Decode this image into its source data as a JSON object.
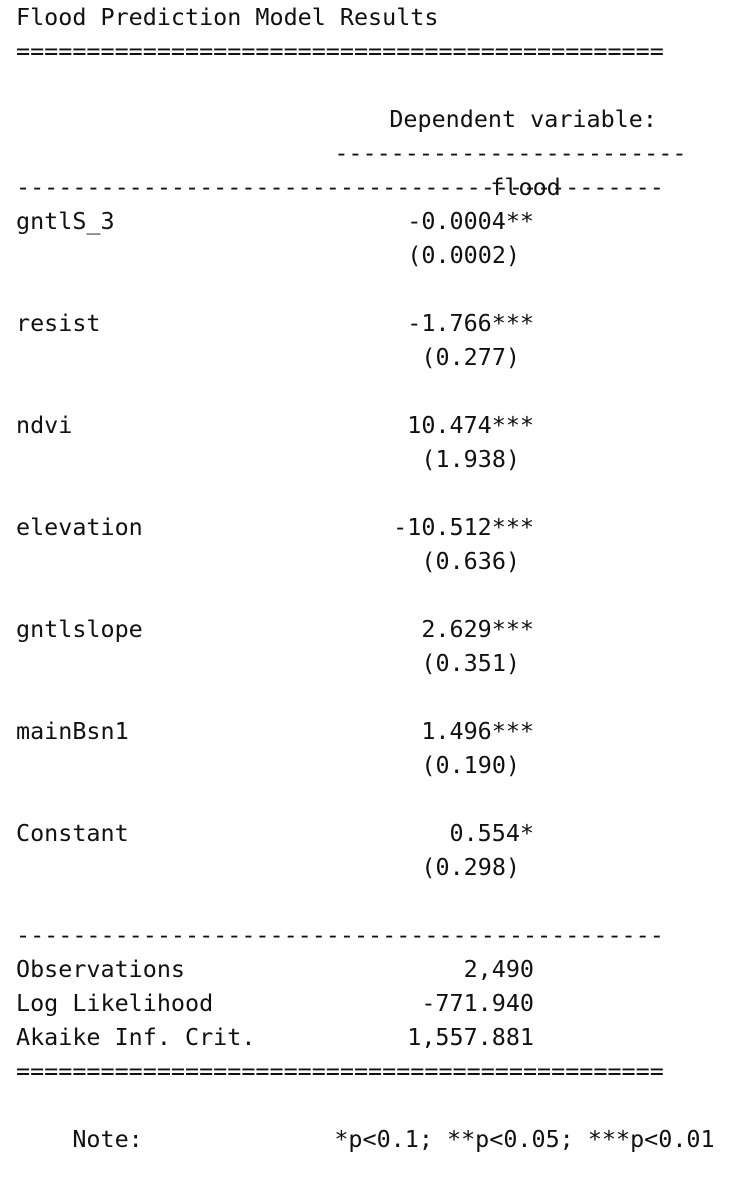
{
  "title": "Flood Prediction Model Results",
  "rules": {
    "double": "==============================================",
    "single": "----------------------------------------------",
    "short": "-------------------------"
  },
  "header": {
    "dependent_variable_label": "Dependent variable:",
    "dependent_variable_name": "flood"
  },
  "coefficients": [
    {
      "name": "gntlS_3",
      "estimate": "-0.0004**",
      "std_error": "(0.0002)"
    },
    {
      "name": "resist",
      "estimate": "-1.766***",
      "std_error": "(0.277)"
    },
    {
      "name": "ndvi",
      "estimate": "10.474***",
      "std_error": "(1.938)"
    },
    {
      "name": "elevation",
      "estimate": "-10.512***",
      "std_error": "(0.636)"
    },
    {
      "name": "gntlslope",
      "estimate": "2.629***",
      "std_error": "(0.351)"
    },
    {
      "name": "mainBsn1",
      "estimate": "1.496***",
      "std_error": "(0.190)"
    },
    {
      "name": "Constant",
      "estimate": "0.554*",
      "std_error": "(0.298)"
    }
  ],
  "statistics": [
    {
      "name": "Observations",
      "value": "2,490"
    },
    {
      "name": "Log Likelihood",
      "value": "-771.940"
    },
    {
      "name": "Akaike Inf. Crit.",
      "value": "1,557.881"
    }
  ],
  "note": {
    "label": "Note:",
    "text": "*p<0.1; **p<0.05; ***p<0.01"
  }
}
